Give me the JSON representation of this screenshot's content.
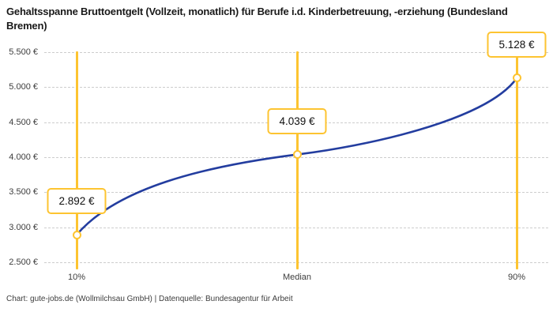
{
  "header": {
    "title": "Gehaltsspanne Bruttoentgelt (Vollzeit, monatlich) für Berufe i.d. Kinderbetreuung, -erziehung (Bundesland Bremen)"
  },
  "footer": {
    "credit": "Chart: gute-jobs.de (Wollmilchsau GmbH) | Datenquelle: Bundesagentur für Arbeit"
  },
  "colors": {
    "accent": "#FDC431",
    "line": "#233D9F",
    "grid": "#CDCDCD",
    "title_text": "#191919",
    "axis_text": "#3D3D3D"
  },
  "chart_data": {
    "type": "line",
    "title": "Gehaltsspanne Bruttoentgelt (Vollzeit, monatlich) für Berufe i.d. Kinderbetreuung, -erziehung (Bundesland Bremen)",
    "categories": [
      "10%",
      "Median",
      "90%"
    ],
    "values": [
      2892,
      4039,
      5128
    ],
    "value_labels": [
      "2.892 €",
      "4.039 €",
      "5.128 €"
    ],
    "xlabel": "",
    "ylabel": "",
    "ylim": [
      2500,
      5500
    ],
    "y_ticks": [
      5500,
      5000,
      4500,
      4000,
      3500,
      3000,
      2500
    ],
    "y_tick_labels": [
      "5.500 €",
      "5.000 €",
      "4.500 €",
      "4.000 €",
      "3.500 €",
      "3.000 €",
      "2.500 €"
    ],
    "grid": "horizontal-dashed",
    "legend_position": "none",
    "annotation_style": "yellow vertical line per percentile with white value box above each data point"
  }
}
